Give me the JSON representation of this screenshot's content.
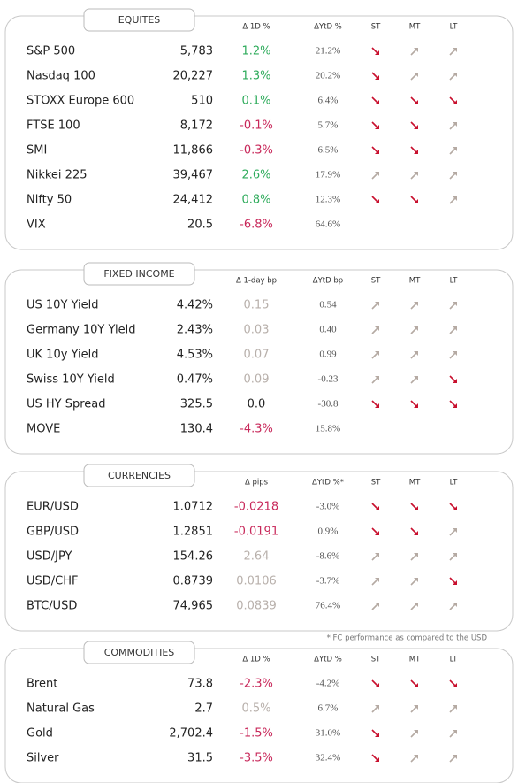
{
  "sections": [
    {
      "title": "EQUITES",
      "columns": [
        "Δ 1D %",
        "ΔYtD %",
        "ST",
        "MT",
        "LT"
      ],
      "rows": [
        {
          "name": "S&P 500",
          "value": "5,783",
          "change": "1.2%",
          "change_color": "#2eab5b",
          "ytd": "21.2%",
          "trend": [
            "down",
            "up",
            "up"
          ]
        },
        {
          "name": "Nasdaq 100",
          "value": "20,227",
          "change": "1.3%",
          "change_color": "#2eab5b",
          "ytd": "20.2%",
          "trend": [
            "down",
            "up",
            "up"
          ]
        },
        {
          "name": "STOXX Europe 600",
          "value": "510",
          "change": "0.1%",
          "change_color": "#2eab5b",
          "ytd": "6.4%",
          "trend": [
            "down",
            "down",
            "down"
          ]
        },
        {
          "name": "FTSE 100",
          "value": "8,172",
          "change": "-0.1%",
          "change_color": "#c8285a",
          "ytd": "5.7%",
          "trend": [
            "down",
            "down",
            "up"
          ]
        },
        {
          "name": "SMI",
          "value": "11,866",
          "change": "-0.3%",
          "change_color": "#c8285a",
          "ytd": "6.5%",
          "trend": [
            "down",
            "down",
            "up"
          ]
        },
        {
          "name": "Nikkei 225",
          "value": "39,467",
          "change": "2.6%",
          "change_color": "#2eab5b",
          "ytd": "17.9%",
          "trend": [
            "up",
            "up",
            "up"
          ]
        },
        {
          "name": "Nifty 50",
          "value": "24,412",
          "change": "0.8%",
          "change_color": "#2eab5b",
          "ytd": "12.3%",
          "trend": [
            "down",
            "down",
            "up"
          ]
        },
        {
          "name": "VIX",
          "value": "20.5",
          "change": "-6.8%",
          "change_color": "#c8285a",
          "ytd": "64.6%",
          "trend": []
        }
      ]
    },
    {
      "title": "FIXED INCOME",
      "columns": [
        "Δ 1-day bp",
        "ΔYtD bp",
        "ST",
        "MT",
        "LT"
      ],
      "rows": [
        {
          "name": "US 10Y Yield",
          "value": "4.42%",
          "change": "0.15",
          "change_color": "#b8b0ab",
          "ytd": "0.54",
          "trend": [
            "up",
            "up",
            "up"
          ]
        },
        {
          "name": "Germany 10Y Yield",
          "value": "2.43%",
          "change": "0.03",
          "change_color": "#b8b0ab",
          "ytd": "0.40",
          "trend": [
            "up",
            "up",
            "up"
          ]
        },
        {
          "name": "UK 10y Yield",
          "value": "4.53%",
          "change": "0.07",
          "change_color": "#b8b0ab",
          "ytd": "0.99",
          "trend": [
            "up",
            "up",
            "up"
          ]
        },
        {
          "name": "Swiss 10Y Yield",
          "value": "0.47%",
          "change": "0.09",
          "change_color": "#b8b0ab",
          "ytd": "-0.23",
          "trend": [
            "up",
            "up",
            "down"
          ]
        },
        {
          "name": "US HY Spread",
          "value": "325.5",
          "change": "0.0",
          "change_color": "#222222",
          "ytd": "-30.8",
          "trend": [
            "down",
            "down",
            "down"
          ]
        },
        {
          "name": "MOVE",
          "value": "130.4",
          "change": "-4.3%",
          "change_color": "#c8285a",
          "ytd": "15.8%",
          "trend": []
        }
      ]
    },
    {
      "title": "CURRENCIES",
      "columns": [
        "Δ pips",
        "ΔYtD %*",
        "ST",
        "MT",
        "LT"
      ],
      "footnote": "* FC performance as compared to the USD",
      "rows": [
        {
          "name": "EUR/USD",
          "value": "1.0712",
          "change": "-0.0218",
          "change_color": "#c8285a",
          "ytd": "-3.0%",
          "trend": [
            "down",
            "down",
            "down"
          ]
        },
        {
          "name": "GBP/USD",
          "value": "1.2851",
          "change": "-0.0191",
          "change_color": "#c8285a",
          "ytd": "0.9%",
          "trend": [
            "down",
            "down",
            "up"
          ]
        },
        {
          "name": "USD/JPY",
          "value": "154.26",
          "change": "2.64",
          "change_color": "#b8b0ab",
          "ytd": "-8.6%",
          "trend": [
            "up",
            "up",
            "up"
          ]
        },
        {
          "name": "USD/CHF",
          "value": "0.8739",
          "change": "0.0106",
          "change_color": "#b8b0ab",
          "ytd": "-3.7%",
          "trend": [
            "up",
            "up",
            "down"
          ]
        },
        {
          "name": "BTC/USD",
          "value": "74,965",
          "change": "0.0839",
          "change_color": "#b8b0ab",
          "ytd": "76.4%",
          "trend": [
            "up",
            "up",
            "up"
          ]
        }
      ]
    },
    {
      "title": "COMMODITIES",
      "columns": [
        "Δ 1D %",
        "ΔYtD %",
        "ST",
        "MT",
        "LT"
      ],
      "rows": [
        {
          "name": "Brent",
          "value": "73.8",
          "change": "-2.3%",
          "change_color": "#c8285a",
          "ytd": "-4.2%",
          "trend": [
            "down",
            "down",
            "down"
          ]
        },
        {
          "name": "Natural Gas",
          "value": "2.7",
          "change": "0.5%",
          "change_color": "#b8b0ab",
          "ytd": "6.7%",
          "trend": [
            "up",
            "up",
            "up"
          ]
        },
        {
          "name": "Gold",
          "value": "2,702.4",
          "change": "-1.5%",
          "change_color": "#c8285a",
          "ytd": "31.0%",
          "trend": [
            "down",
            "up",
            "up"
          ]
        },
        {
          "name": "Silver",
          "value": "31.5",
          "change": "-3.5%",
          "change_color": "#c8285a",
          "ytd": "32.4%",
          "trend": [
            "down",
            "up",
            "up"
          ]
        }
      ]
    }
  ]
}
